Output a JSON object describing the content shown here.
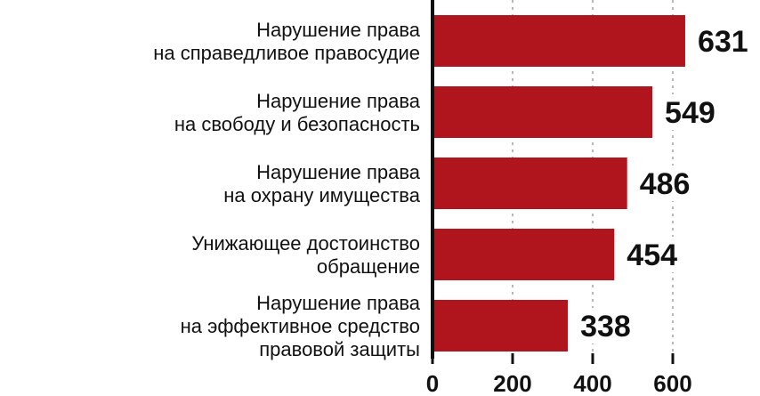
{
  "chart_data": {
    "type": "bar",
    "orientation": "horizontal",
    "categories": [
      [
        "Нарушение права",
        "на справедливое правосудие"
      ],
      [
        "Нарушение права",
        "на свободу и безопасность"
      ],
      [
        "Нарушение права",
        "на охрану имущества"
      ],
      [
        "Унижающее достоинство",
        "обращение"
      ],
      [
        "Нарушение права",
        "на эффективное средство",
        "правовой защиты"
      ]
    ],
    "values": [
      631,
      549,
      486,
      454,
      338
    ],
    "value_labels": [
      "631",
      "549",
      "486",
      "454",
      "338"
    ],
    "xlim": [
      0,
      700
    ],
    "xticks": [
      0,
      200,
      400,
      600
    ],
    "xtick_labels": [
      "0",
      "200",
      "400",
      "600"
    ],
    "grid": true,
    "bar_color": "#b0141c",
    "axis_color": "#111111",
    "grid_color": "#9a9a9a"
  }
}
